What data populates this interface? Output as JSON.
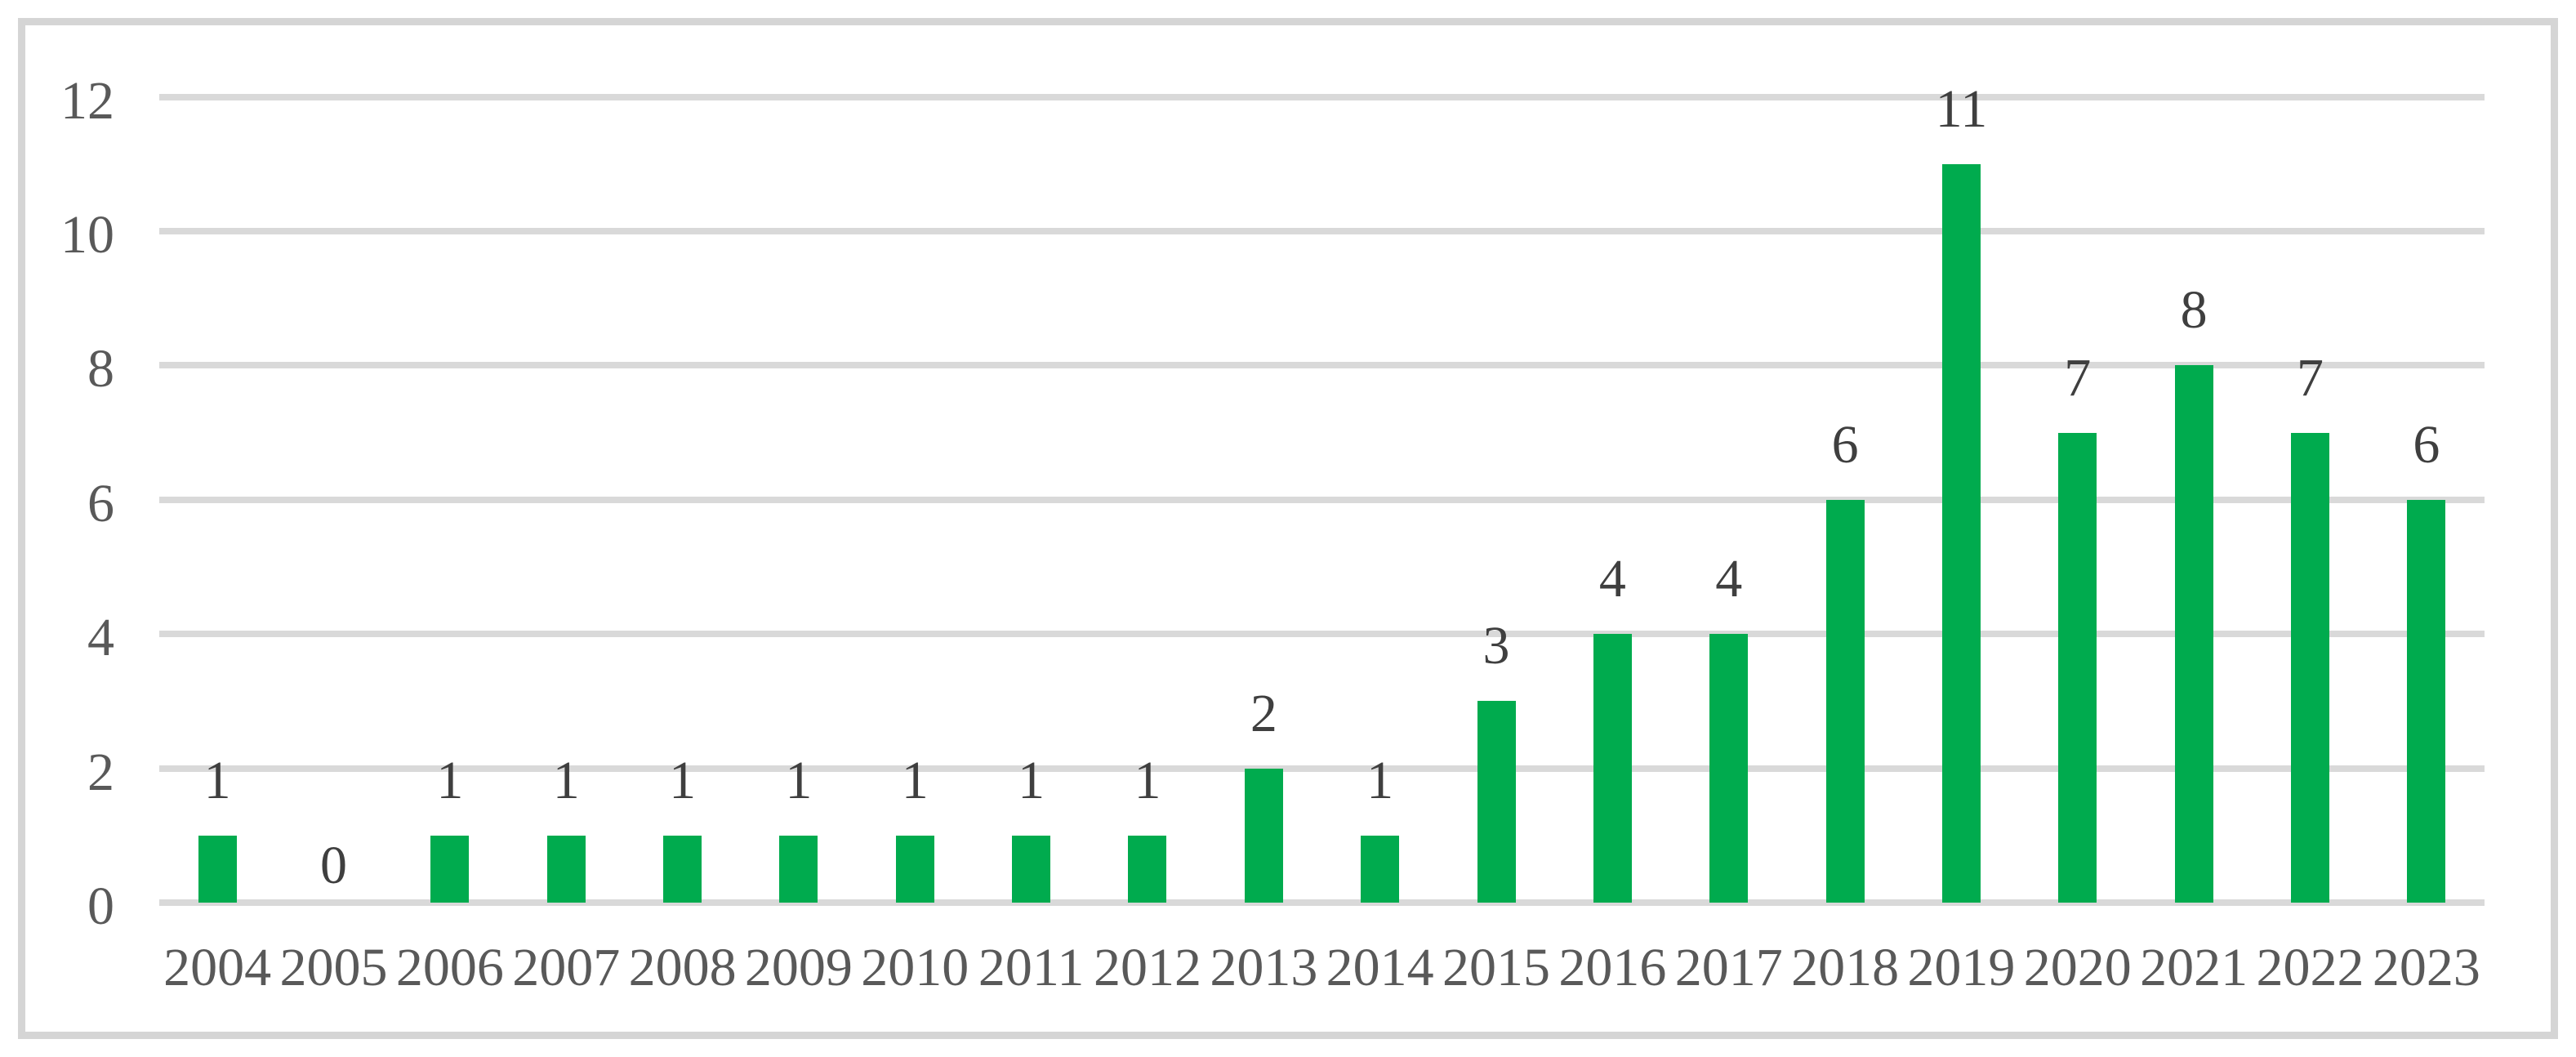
{
  "chart_data": {
    "type": "bar",
    "title": "",
    "xlabel": "",
    "ylabel": "",
    "categories": [
      "2004",
      "2005",
      "2006",
      "2007",
      "2008",
      "2009",
      "2010",
      "2011",
      "2012",
      "2013",
      "2014",
      "2015",
      "2016",
      "2017",
      "2018",
      "2019",
      "2020",
      "2021",
      "2022",
      "2023"
    ],
    "values": [
      1,
      0,
      1,
      1,
      1,
      1,
      1,
      1,
      1,
      2,
      1,
      3,
      4,
      4,
      6,
      11,
      7,
      8,
      7,
      6
    ],
    "data_labels": [
      1,
      0,
      1,
      1,
      1,
      1,
      1,
      1,
      1,
      2,
      1,
      3,
      4,
      4,
      6,
      11,
      7,
      8,
      7,
      6
    ],
    "ylim": [
      0,
      12
    ],
    "yticks": [
      0,
      2,
      4,
      6,
      8,
      10,
      12
    ],
    "grid": true,
    "legend": false,
    "colors": {
      "bar": "#00AB4E",
      "gridline": "#D9D9D9",
      "axis_text": "#595959",
      "data_label_text": "#3F3F3F",
      "frame_border": "#D5D5D5",
      "background": "#FFFFFF"
    }
  }
}
